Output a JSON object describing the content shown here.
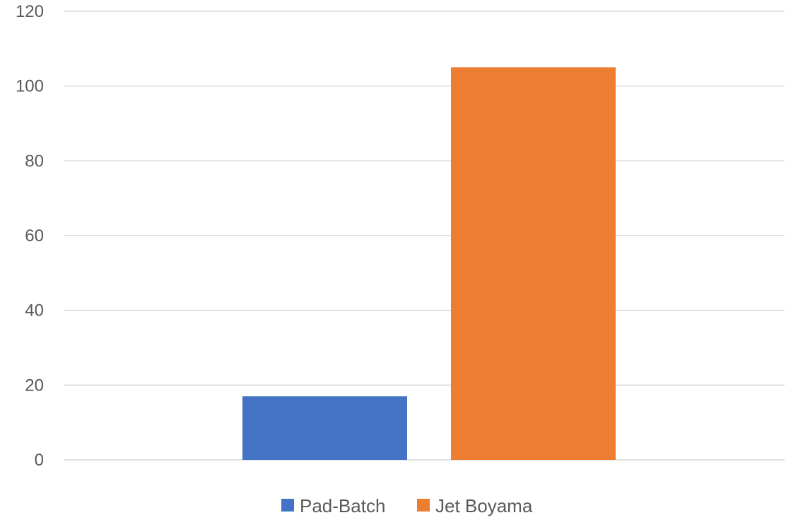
{
  "chart_data": {
    "type": "bar",
    "title": "",
    "xlabel": "",
    "ylabel": "",
    "categories": [
      ""
    ],
    "series": [
      {
        "name": "Pad-Batch",
        "values": [
          17
        ],
        "color": "#4472C4"
      },
      {
        "name": "Jet Boyama",
        "values": [
          105
        ],
        "color": "#ED7D31"
      }
    ],
    "ylim": [
      0,
      120
    ],
    "yticks": [
      "0",
      "20",
      "40",
      "60",
      "80",
      "100",
      "120"
    ],
    "grid": true,
    "legend_position": "bottom"
  }
}
